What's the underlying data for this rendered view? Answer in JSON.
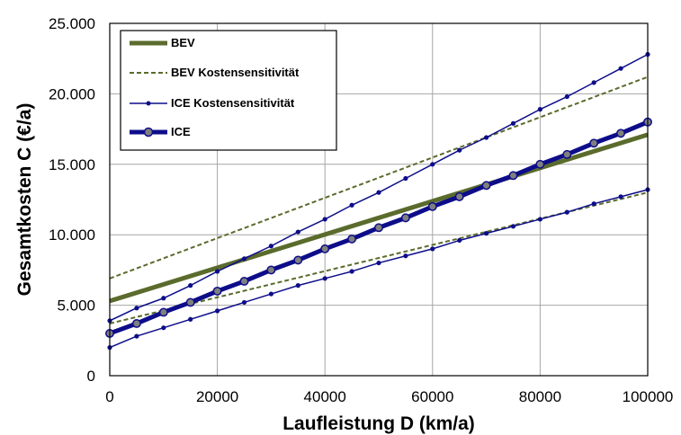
{
  "chart_data": {
    "type": "line",
    "title": "",
    "xlabel": "Laufleistung D (km/a)",
    "ylabel": "Gesamtkosten C (€/a)",
    "xlim": [
      0,
      100000
    ],
    "ylim": [
      0,
      25000
    ],
    "x_ticks": [
      "0",
      "20000",
      "40000",
      "60000",
      "80000",
      "100000"
    ],
    "y_ticks": [
      "0",
      "5.000",
      "10.000",
      "15.000",
      "20.000",
      "25.000"
    ],
    "grid": true,
    "legend_position": "top-left",
    "legend": [
      "BEV",
      "BEV Kostensensitivität",
      "ICE Kostensensitivität",
      "ICE"
    ],
    "series": [
      {
        "name": "BEV",
        "style": "thick-solid",
        "color": "#5a6b2c",
        "x": [
          0,
          100000
        ],
        "y": [
          5300,
          17100
        ]
      },
      {
        "name": "BEV Kostensensitivität",
        "style": "dashed",
        "color": "#5a6b2c",
        "x": [
          0,
          100000
        ],
        "y": [
          6900,
          21200
        ]
      },
      {
        "name": "BEV Kostensensitivität",
        "style": "dashed",
        "color": "#5a6b2c",
        "legend": false,
        "x": [
          0,
          100000
        ],
        "y": [
          3700,
          13000
        ]
      },
      {
        "name": "ICE Kostensensitivität",
        "style": "thin-marker",
        "color": "#0d0d8a",
        "x": [
          0,
          5000,
          10000,
          15000,
          20000,
          25000,
          30000,
          35000,
          40000,
          45000,
          50000,
          55000,
          60000,
          65000,
          70000,
          75000,
          80000,
          85000,
          90000,
          95000,
          100000
        ],
        "y": [
          3900,
          4800,
          5500,
          6400,
          7400,
          8300,
          9200,
          10200,
          11100,
          12100,
          13000,
          14000,
          15000,
          16000,
          16900,
          17900,
          18900,
          19800,
          20800,
          21800,
          22800
        ]
      },
      {
        "name": "ICE Kostensensitivität",
        "style": "thin-marker",
        "color": "#0d0d8a",
        "legend": false,
        "x": [
          0,
          5000,
          10000,
          15000,
          20000,
          25000,
          30000,
          35000,
          40000,
          45000,
          50000,
          55000,
          60000,
          65000,
          70000,
          75000,
          80000,
          85000,
          90000,
          95000,
          100000
        ],
        "y": [
          2000,
          2800,
          3400,
          4000,
          4600,
          5200,
          5800,
          6400,
          6900,
          7400,
          8000,
          8500,
          9000,
          9600,
          10100,
          10600,
          11100,
          11600,
          12200,
          12700,
          13200
        ]
      },
      {
        "name": "ICE",
        "style": "thick-marker",
        "color": "#0d0d8a",
        "x": [
          0,
          5000,
          10000,
          15000,
          20000,
          25000,
          30000,
          35000,
          40000,
          45000,
          50000,
          55000,
          60000,
          65000,
          70000,
          75000,
          80000,
          85000,
          90000,
          95000,
          100000
        ],
        "y": [
          3000,
          3700,
          4500,
          5200,
          6000,
          6700,
          7500,
          8200,
          9000,
          9700,
          10500,
          11200,
          12000,
          12700,
          13500,
          14200,
          15000,
          15700,
          16500,
          17200,
          18000
        ]
      }
    ]
  }
}
